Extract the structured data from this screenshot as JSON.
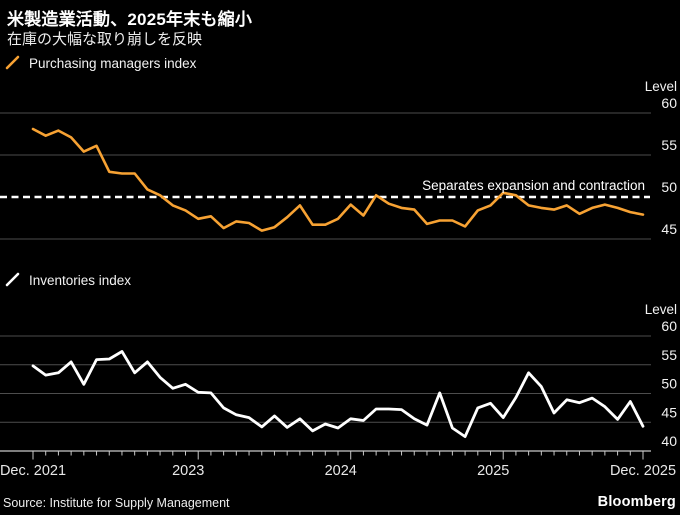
{
  "header": {
    "title": "米製造業活動、2025年末も縮小",
    "subtitle": "在庫の大幅な取り崩しを反映"
  },
  "footer": {
    "source": "Source: Institute for Supply Management",
    "brand": "Bloomberg"
  },
  "colors": {
    "background": "#000000",
    "pmi_line": "#F7A233",
    "inventories_line": "#FFFFFF",
    "gridline": "#4D4D4D",
    "reference_line": "#FFFFFF",
    "axis": "#C9C9C9",
    "tick_label": "#F2F2F2",
    "text": "#FFFFFF"
  },
  "xaxis": {
    "interval": "monthly",
    "tick_labels": [
      "Dec. 2021",
      "2023",
      "2024",
      "2025",
      "Dec. 2025"
    ]
  },
  "chart_data": [
    {
      "type": "line",
      "title": "Purchasing managers index",
      "unit_label": "Level",
      "x_start": "Dec. 2021",
      "x_end": "Dec. 2025",
      "ylim": [
        45,
        60
      ],
      "yticks": [
        45,
        50,
        55,
        60
      ],
      "grid": true,
      "legend_position": "top-left",
      "reference_line": {
        "value": 50,
        "label": "Separates expansion and contraction"
      },
      "values": [
        58.1,
        57.3,
        57.9,
        57.1,
        55.4,
        56.1,
        53.0,
        52.8,
        52.8,
        50.9,
        50.2,
        49.0,
        48.4,
        47.4,
        47.7,
        46.3,
        47.1,
        46.9,
        46.0,
        46.4,
        47.6,
        49.0,
        46.7,
        46.7,
        47.4,
        49.1,
        47.8,
        50.2,
        49.2,
        48.7,
        48.5,
        46.8,
        47.2,
        47.2,
        46.5,
        48.4,
        49.0,
        50.5,
        50.2,
        49.0,
        48.7,
        48.5,
        49.0,
        48.0,
        48.7,
        49.1,
        48.7,
        48.2,
        47.9
      ]
    },
    {
      "type": "line",
      "title": "Inventories index",
      "unit_label": "Level",
      "x_start": "Dec. 2021",
      "x_end": "Dec. 2025",
      "ylim": [
        40,
        60
      ],
      "yticks": [
        40,
        45,
        50,
        55,
        60
      ],
      "grid": true,
      "legend_position": "top-left",
      "values": [
        54.8,
        53.2,
        53.6,
        55.5,
        51.6,
        55.9,
        56.0,
        57.3,
        53.6,
        55.5,
        52.8,
        50.9,
        51.6,
        50.2,
        50.1,
        47.5,
        46.3,
        45.8,
        44.2,
        46.1,
        44.1,
        45.6,
        43.5,
        44.7,
        44.0,
        45.6,
        45.3,
        47.3,
        47.3,
        47.2,
        45.6,
        44.5,
        50.1,
        44.0,
        42.5,
        47.5,
        48.3,
        45.8,
        49.3,
        53.6,
        51.2,
        46.6,
        48.9,
        48.4,
        49.2,
        47.7,
        45.5,
        48.6,
        44.3
      ]
    }
  ]
}
